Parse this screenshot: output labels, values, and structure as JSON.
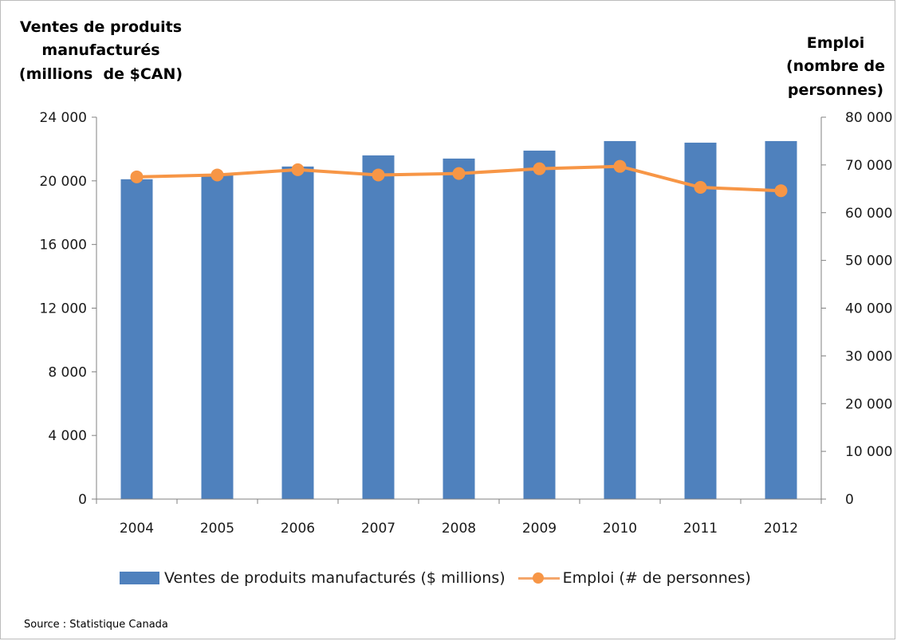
{
  "chart_data": {
    "type": "bar",
    "categories": [
      "2004",
      "2005",
      "2006",
      "2007",
      "2008",
      "2009",
      "2010",
      "2011",
      "2012"
    ],
    "series": [
      {
        "name": "Ventes de produits manufacturés ($ millions)",
        "type": "bar",
        "axis": "left",
        "color": "#4f81bd",
        "values": [
          20100,
          20400,
          20900,
          21600,
          21400,
          21900,
          22500,
          22400,
          22500
        ]
      },
      {
        "name": "Emploi (# de personnes)",
        "type": "line",
        "axis": "right",
        "color": "#f79646",
        "values": [
          67500,
          67900,
          69000,
          67900,
          68200,
          69200,
          69700,
          65300,
          64600
        ]
      }
    ],
    "y_left": {
      "title_lines": [
        "Ventes de produits",
        "manufacturés",
        "(millions  de $CAN)"
      ],
      "ylim": [
        0,
        24000
      ],
      "ticks": [
        0,
        4000,
        8000,
        12000,
        16000,
        20000,
        24000
      ],
      "tick_labels": [
        "0",
        "4 000",
        "8 000",
        "12 000",
        "16 000",
        "20 000",
        "24 000"
      ]
    },
    "y_right": {
      "title_lines": [
        "Emploi",
        "(nombre de",
        "personnes)"
      ],
      "ylim": [
        0,
        80000
      ],
      "ticks": [
        0,
        10000,
        20000,
        30000,
        40000,
        50000,
        60000,
        70000,
        80000
      ],
      "tick_labels": [
        "0",
        "10 000",
        "20 000",
        "30 000",
        "40 000",
        "50 000",
        "60 000",
        "70 000",
        "80 000"
      ]
    },
    "grid": false,
    "legend_position": "bottom"
  },
  "legend": {
    "bar_label": "Ventes de produits manufacturés ($ millions)",
    "line_label": "Emploi (# de personnes)"
  },
  "source": "Source : Statistique Canada"
}
